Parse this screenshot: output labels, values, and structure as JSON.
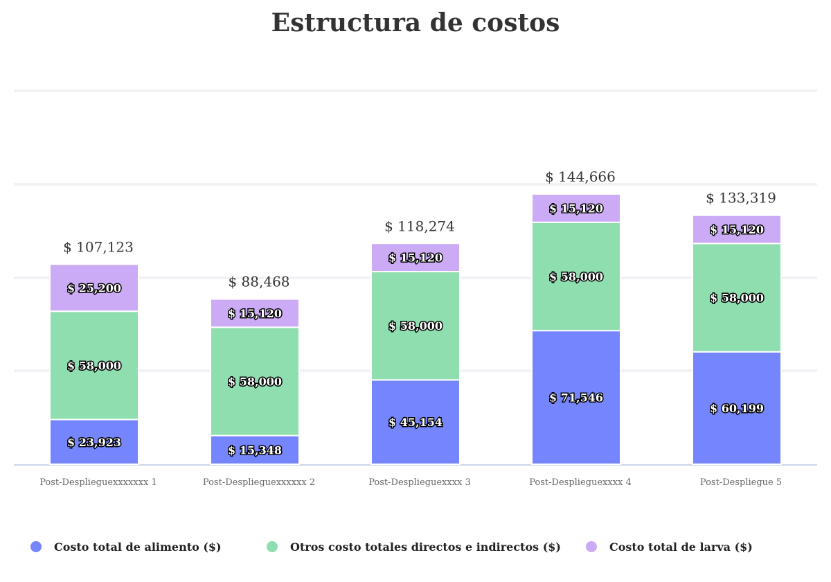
{
  "chart_data": {
    "type": "bar",
    "stacked": true,
    "title": "Estructura de costos",
    "categories": [
      "Post-Desplieguexxxxxxx 1",
      "Post-Desplieguexxxxxx 2",
      "Post-Desplieguexxxx 3",
      "Post-Desplieguexxxx 4",
      "Post-Despliegue 5"
    ],
    "series": [
      {
        "name": "Costo total de alimento ($)",
        "color": "#7485fd",
        "values": [
          23923,
          15348,
          45154,
          71546,
          60199
        ],
        "labels": [
          "$ 23,923",
          "$ 15,348",
          "$ 45,154",
          "$ 71,546",
          "$ 60,199"
        ]
      },
      {
        "name": "Otros costo totales directos e indirectos ($)",
        "color": "#8fdeb0",
        "values": [
          58000,
          58000,
          58000,
          58000,
          58000
        ],
        "labels": [
          "$ 58,000",
          "$ 58,000",
          "$ 58,000",
          "$ 58,000",
          "$ 58,000"
        ]
      },
      {
        "name": "Costo total de larva ($)",
        "color": "#cbabf5",
        "values": [
          25200,
          15120,
          15120,
          15120,
          15120
        ],
        "labels": [
          "$ 25,200",
          "$ 15,120",
          "$ 15,120",
          "$ 15,120",
          "$ 15,120"
        ]
      }
    ],
    "totals": [
      107123,
      88468,
      118274,
      144666,
      133319
    ],
    "total_labels": [
      "$ 107,123",
      "$ 88,468",
      "$ 118,274",
      "$ 144,666",
      "$ 133,319"
    ],
    "ylim": [
      0,
      200000
    ],
    "grid": true,
    "y_tick_labels_visible": false,
    "legend_position": "bottom"
  }
}
